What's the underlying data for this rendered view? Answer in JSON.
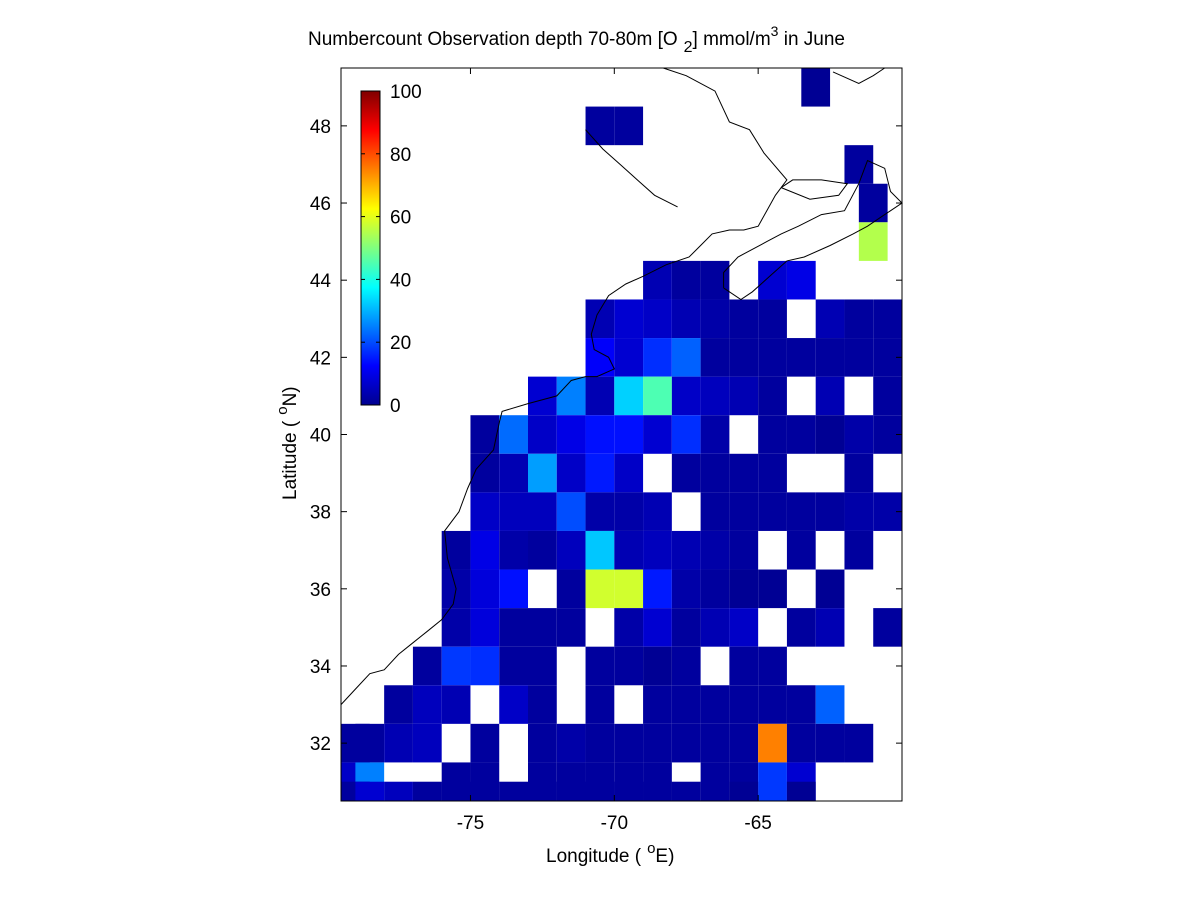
{
  "chart_data": {
    "type": "heatmap",
    "title": "Numbercount Observation depth 70-80m [O 2] mmol/m3 in June",
    "title_parts": {
      "prefix": "Numbercount Observation depth 70-80m [O",
      "subscript": "2",
      "middle": "] mmol/m",
      "superscript": "3",
      "suffix": " in June"
    },
    "xlabel": "Longitude (",
    "xlabel_degree": "o",
    "xlabel_unit": "E)",
    "ylabel": "Latitude (",
    "ylabel_degree": "o",
    "ylabel_unit": "N)",
    "xlim": [
      -79.5,
      -60.0
    ],
    "ylim": [
      30.5,
      49.5
    ],
    "xticks": [
      -75,
      -70,
      -65
    ],
    "xtick_labels": [
      "-75",
      "-70",
      "-65"
    ],
    "yticks": [
      32,
      34,
      36,
      38,
      40,
      42,
      44,
      46,
      48
    ],
    "ytick_labels": [
      "32",
      "34",
      "36",
      "38",
      "40",
      "42",
      "44",
      "46",
      "48"
    ],
    "colormap": "jet",
    "colorbar": {
      "range": [
        0,
        100
      ],
      "ticks": [
        0,
        20,
        40,
        60,
        80,
        100
      ],
      "tick_labels": [
        "0",
        "20",
        "40",
        "60",
        "80",
        "100"
      ],
      "placement": "inside top-left"
    },
    "cell_size_degrees": 1,
    "cells": [
      [
        -63,
        49,
        2
      ],
      [
        -69.5,
        48,
        3
      ],
      [
        -70.5,
        48,
        3
      ],
      [
        -61.5,
        47,
        3
      ],
      [
        -61,
        46,
        3
      ],
      [
        -61,
        45,
        55
      ],
      [
        -67.5,
        44,
        3
      ],
      [
        -66.5,
        44,
        3
      ],
      [
        -68.5,
        44,
        5
      ],
      [
        -64.5,
        44,
        8
      ],
      [
        -63.5,
        44,
        10
      ],
      [
        -70.5,
        43,
        5
      ],
      [
        -69.5,
        43,
        8
      ],
      [
        -68.5,
        43,
        7
      ],
      [
        -67.5,
        43,
        5
      ],
      [
        -66.5,
        43,
        4
      ],
      [
        -65.5,
        43,
        3
      ],
      [
        -64.5,
        43,
        3
      ],
      [
        -62.5,
        43,
        5
      ],
      [
        -61.5,
        43,
        3
      ],
      [
        -60.5,
        43,
        3
      ],
      [
        -70.5,
        42,
        12
      ],
      [
        -69.5,
        42,
        8
      ],
      [
        -68.5,
        42,
        17
      ],
      [
        -67.5,
        42,
        22
      ],
      [
        -66.5,
        42,
        3
      ],
      [
        -65.5,
        42,
        3
      ],
      [
        -64.5,
        42,
        3
      ],
      [
        -63.5,
        42,
        3
      ],
      [
        -62.5,
        42,
        3
      ],
      [
        -61.5,
        42,
        3
      ],
      [
        -60.5,
        42,
        3
      ],
      [
        -72.5,
        41,
        8
      ],
      [
        -71.5,
        41,
        25
      ],
      [
        -70.5,
        41,
        5
      ],
      [
        -69.5,
        41,
        33
      ],
      [
        -68.5,
        41,
        45
      ],
      [
        -67.5,
        41,
        7
      ],
      [
        -66.5,
        41,
        6
      ],
      [
        -65.5,
        41,
        5
      ],
      [
        -64.5,
        41,
        3
      ],
      [
        -62.5,
        41,
        5
      ],
      [
        -60.5,
        41,
        3
      ],
      [
        -74.5,
        40,
        3
      ],
      [
        -73.5,
        40,
        23
      ],
      [
        -72.5,
        40,
        7
      ],
      [
        -71.5,
        40,
        10
      ],
      [
        -70.5,
        40,
        14
      ],
      [
        -69.5,
        40,
        14
      ],
      [
        -68.5,
        40,
        8
      ],
      [
        -67.5,
        40,
        17
      ],
      [
        -66.5,
        40,
        4
      ],
      [
        -64.5,
        40,
        3
      ],
      [
        -63.5,
        40,
        3
      ],
      [
        -62.5,
        40,
        2
      ],
      [
        -61.5,
        40,
        4
      ],
      [
        -60.5,
        40,
        3
      ],
      [
        -74.5,
        39,
        3
      ],
      [
        -73.5,
        39,
        5
      ],
      [
        -72.5,
        39,
        28
      ],
      [
        -71.5,
        39,
        7
      ],
      [
        -70.5,
        39,
        15
      ],
      [
        -69.5,
        39,
        7
      ],
      [
        -67.5,
        39,
        3
      ],
      [
        -66.5,
        39,
        3
      ],
      [
        -65.5,
        39,
        3
      ],
      [
        -64.5,
        39,
        3
      ],
      [
        -61.5,
        39,
        3
      ],
      [
        -74.5,
        38,
        7
      ],
      [
        -73.5,
        38,
        6
      ],
      [
        -72.5,
        38,
        6
      ],
      [
        -71.5,
        38,
        20
      ],
      [
        -70.5,
        38,
        4
      ],
      [
        -69.5,
        38,
        4
      ],
      [
        -68.5,
        38,
        5
      ],
      [
        -66.5,
        38,
        3
      ],
      [
        -65.5,
        38,
        3
      ],
      [
        -64.5,
        38,
        3
      ],
      [
        -63.5,
        38,
        3
      ],
      [
        -62.5,
        38,
        3
      ],
      [
        -61.5,
        38,
        4
      ],
      [
        -60.5,
        38,
        4
      ],
      [
        -75.5,
        37,
        3
      ],
      [
        -74.5,
        37,
        10
      ],
      [
        -73.5,
        37,
        4
      ],
      [
        -72.5,
        37,
        3
      ],
      [
        -71.5,
        37,
        6
      ],
      [
        -70.5,
        37,
        32
      ],
      [
        -69.5,
        37,
        5
      ],
      [
        -68.5,
        37,
        6
      ],
      [
        -67.5,
        37,
        5
      ],
      [
        -66.5,
        37,
        4
      ],
      [
        -65.5,
        37,
        3
      ],
      [
        -63.5,
        37,
        3
      ],
      [
        -61.5,
        37,
        3
      ],
      [
        -75.5,
        36,
        4
      ],
      [
        -74.5,
        36,
        9
      ],
      [
        -73.5,
        36,
        14
      ],
      [
        -71.5,
        36,
        3
      ],
      [
        -70.5,
        36,
        58
      ],
      [
        -69.5,
        36,
        58
      ],
      [
        -68.5,
        36,
        15
      ],
      [
        -67.5,
        36,
        4
      ],
      [
        -66.5,
        36,
        3
      ],
      [
        -65.5,
        36,
        2
      ],
      [
        -64.5,
        36,
        2
      ],
      [
        -62.5,
        36,
        2
      ],
      [
        -75.5,
        35,
        4
      ],
      [
        -74.5,
        35,
        9
      ],
      [
        -73.5,
        35,
        3
      ],
      [
        -72.5,
        35,
        3
      ],
      [
        -71.5,
        35,
        3
      ],
      [
        -69.5,
        35,
        4
      ],
      [
        -68.5,
        35,
        8
      ],
      [
        -67.5,
        35,
        3
      ],
      [
        -66.5,
        35,
        5
      ],
      [
        -65.5,
        35,
        7
      ],
      [
        -63.5,
        35,
        3
      ],
      [
        -62.5,
        35,
        5
      ],
      [
        -60.5,
        35,
        3
      ],
      [
        -76.5,
        34,
        3
      ],
      [
        -75.5,
        34,
        18
      ],
      [
        -74.5,
        34,
        17
      ],
      [
        -73.5,
        34,
        3
      ],
      [
        -72.5,
        34,
        3
      ],
      [
        -70.5,
        34,
        3
      ],
      [
        -69.5,
        34,
        3
      ],
      [
        -68.5,
        34,
        2
      ],
      [
        -67.5,
        34,
        3
      ],
      [
        -65.5,
        34,
        3
      ],
      [
        -64.5,
        34,
        3
      ],
      [
        -77.5,
        33,
        3
      ],
      [
        -76.5,
        33,
        6
      ],
      [
        -75.5,
        33,
        5
      ],
      [
        -73.5,
        33,
        7
      ],
      [
        -72.5,
        33,
        3
      ],
      [
        -70.5,
        33,
        3
      ],
      [
        -68.5,
        33,
        3
      ],
      [
        -67.5,
        33,
        3
      ],
      [
        -66.5,
        33,
        3
      ],
      [
        -65.5,
        33,
        3
      ],
      [
        -64.5,
        33,
        3
      ],
      [
        -63.5,
        33,
        3
      ],
      [
        -62.5,
        33,
        22
      ],
      [
        -79,
        32,
        3
      ],
      [
        -78.5,
        32,
        3
      ],
      [
        -77.5,
        32,
        5
      ],
      [
        -76.5,
        32,
        6
      ],
      [
        -74.5,
        32,
        3
      ],
      [
        -72.5,
        32,
        3
      ],
      [
        -71.5,
        32,
        4
      ],
      [
        -70.5,
        32,
        3
      ],
      [
        -69.5,
        32,
        3
      ],
      [
        -68.5,
        32,
        3
      ],
      [
        -67.5,
        32,
        3
      ],
      [
        -66.5,
        32,
        3
      ],
      [
        -65.5,
        32,
        3
      ],
      [
        -64.5,
        32,
        75
      ],
      [
        -63.5,
        32,
        3
      ],
      [
        -62.5,
        32,
        3
      ],
      [
        -61.5,
        32,
        3
      ],
      [
        -79,
        31,
        7
      ],
      [
        -78.5,
        31,
        25
      ],
      [
        -75.5,
        31,
        3
      ],
      [
        -74.5,
        31,
        3
      ],
      [
        -72.5,
        31,
        3
      ],
      [
        -71.5,
        31,
        3
      ],
      [
        -70.5,
        31,
        3
      ],
      [
        -69.5,
        31,
        3
      ],
      [
        -68.5,
        31,
        3
      ],
      [
        -66.5,
        31,
        3
      ],
      [
        -65.5,
        31,
        3
      ],
      [
        -64.5,
        31,
        18
      ],
      [
        -63.5,
        31,
        8
      ],
      [
        -79,
        30.5,
        3
      ],
      [
        -78.5,
        30.5,
        8
      ],
      [
        -77.5,
        30.5,
        6
      ],
      [
        -76.5,
        30.5,
        3
      ],
      [
        -75.5,
        30.5,
        3
      ],
      [
        -74.5,
        30.5,
        3
      ],
      [
        -73.5,
        30.5,
        3
      ],
      [
        -72.5,
        30.5,
        3
      ],
      [
        -71.5,
        30.5,
        3
      ],
      [
        -70.5,
        30.5,
        3
      ],
      [
        -69.5,
        30.5,
        3
      ],
      [
        -68.5,
        30.5,
        3
      ],
      [
        -67.5,
        30.5,
        3
      ],
      [
        -65.5,
        30.5,
        2
      ],
      [
        -63.5,
        30.5,
        2
      ]
    ],
    "coastline_lonlat": [
      [
        -79.5,
        33.0
      ],
      [
        -79.0,
        33.4
      ],
      [
        -78.5,
        33.8
      ],
      [
        -78.0,
        33.9
      ],
      [
        -77.5,
        34.3
      ],
      [
        -77.0,
        34.6
      ],
      [
        -76.5,
        34.9
      ],
      [
        -76.0,
        35.2
      ],
      [
        -75.6,
        35.6
      ],
      [
        -75.5,
        36.0
      ],
      [
        -75.8,
        36.8
      ],
      [
        -75.9,
        37.5
      ],
      [
        -75.4,
        38.0
      ],
      [
        -75.1,
        38.6
      ],
      [
        -74.8,
        39.1
      ],
      [
        -74.2,
        39.6
      ],
      [
        -74.0,
        40.3
      ],
      [
        -73.9,
        40.6
      ],
      [
        -73.0,
        40.8
      ],
      [
        -72.0,
        41.0
      ],
      [
        -71.5,
        41.4
      ],
      [
        -71.0,
        41.5
      ],
      [
        -70.6,
        41.5
      ],
      [
        -70.0,
        41.7
      ],
      [
        -70.2,
        42.0
      ],
      [
        -70.7,
        42.2
      ],
      [
        -70.8,
        42.6
      ],
      [
        -70.6,
        43.1
      ],
      [
        -70.2,
        43.6
      ],
      [
        -69.6,
        43.9
      ],
      [
        -69.0,
        44.1
      ],
      [
        -68.2,
        44.4
      ],
      [
        -67.4,
        44.6
      ],
      [
        -67.0,
        44.9
      ],
      [
        -66.6,
        45.2
      ],
      [
        -66.0,
        45.3
      ],
      [
        -65.5,
        45.3
      ],
      [
        -65.0,
        45.4
      ],
      [
        -64.7,
        45.8
      ],
      [
        -64.4,
        46.2
      ],
      [
        -64.0,
        46.6
      ],
      [
        -64.8,
        47.3
      ],
      [
        -65.3,
        47.9
      ],
      [
        -66.0,
        48.1
      ],
      [
        -66.5,
        48.9
      ],
      [
        -67.5,
        49.3
      ],
      [
        -68.3,
        49.5
      ]
    ],
    "coastline2_lonlat": [
      [
        -66.2,
        43.8
      ],
      [
        -65.6,
        43.5
      ],
      [
        -65.2,
        43.7
      ],
      [
        -64.6,
        44.1
      ],
      [
        -64.0,
        44.5
      ],
      [
        -63.4,
        44.6
      ],
      [
        -62.5,
        44.9
      ],
      [
        -61.7,
        45.2
      ],
      [
        -61.2,
        45.4
      ],
      [
        -60.6,
        45.7
      ],
      [
        -60.0,
        46.0
      ],
      [
        -60.4,
        46.3
      ],
      [
        -60.6,
        46.9
      ],
      [
        -61.2,
        47.1
      ],
      [
        -61.5,
        46.5
      ],
      [
        -62.0,
        45.8
      ],
      [
        -62.8,
        45.7
      ],
      [
        -63.6,
        45.4
      ],
      [
        -64.2,
        45.2
      ],
      [
        -64.7,
        45.0
      ],
      [
        -65.7,
        44.6
      ],
      [
        -66.2,
        44.2
      ],
      [
        -66.2,
        43.8
      ]
    ],
    "coastline3_lonlat": [
      [
        -71.0,
        47.9
      ],
      [
        -70.4,
        47.4
      ],
      [
        -69.8,
        47.0
      ],
      [
        -69.2,
        46.6
      ],
      [
        -68.6,
        46.2
      ],
      [
        -67.8,
        45.9
      ]
    ],
    "coastline4_lonlat": [
      [
        -64.2,
        46.4
      ],
      [
        -63.2,
        46.1
      ],
      [
        -62.2,
        46.2
      ],
      [
        -61.9,
        46.5
      ],
      [
        -62.8,
        46.6
      ],
      [
        -63.8,
        46.6
      ],
      [
        -64.2,
        46.4
      ]
    ],
    "coastline5_lonlat": [
      [
        -62.4,
        49.4
      ],
      [
        -61.5,
        49.1
      ],
      [
        -61.0,
        49.3
      ],
      [
        -60.6,
        49.5
      ]
    ]
  }
}
